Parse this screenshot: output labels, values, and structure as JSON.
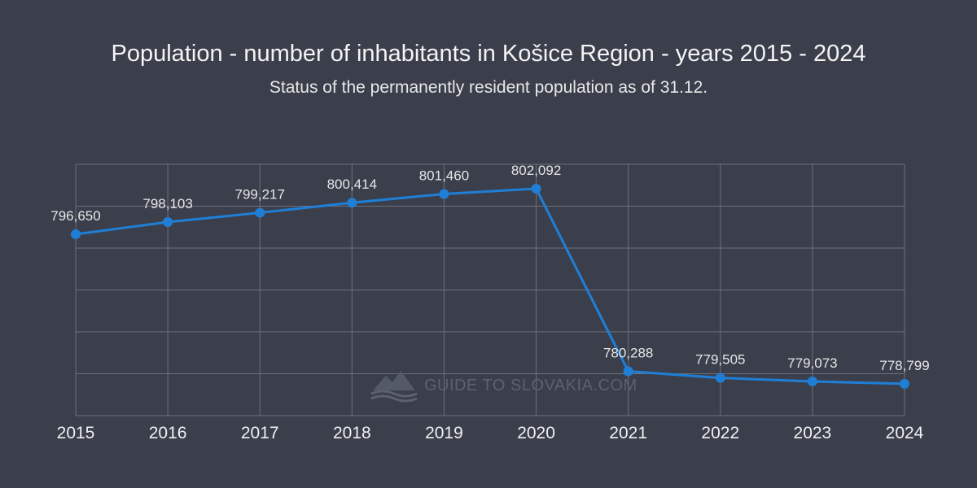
{
  "chart_data": {
    "type": "line",
    "title": "Population - number of inhabitants in Košice Region - years 2015 - 2024",
    "subtitle": "Status of the permanently resident population as of 31.12.",
    "x": [
      "2015",
      "2016",
      "2017",
      "2018",
      "2019",
      "2020",
      "2021",
      "2022",
      "2023",
      "2024"
    ],
    "series": [
      {
        "values": [
          796650,
          798103,
          799217,
          800414,
          801460,
          802092,
          780288,
          779505,
          779073,
          778799
        ],
        "labels": [
          "796,650",
          "798,103",
          "799,217",
          "800,414",
          "801,460",
          "802,092",
          "780,288",
          "779,505",
          "779,073",
          "778,799"
        ],
        "color": "#1f7fd6"
      }
    ],
    "xlabel": "",
    "ylabel": "",
    "grid": true,
    "legend": "none"
  },
  "watermark": {
    "text": "GUIDE TO SLOVAKIA.COM",
    "icon": "mountain-logo-icon"
  }
}
